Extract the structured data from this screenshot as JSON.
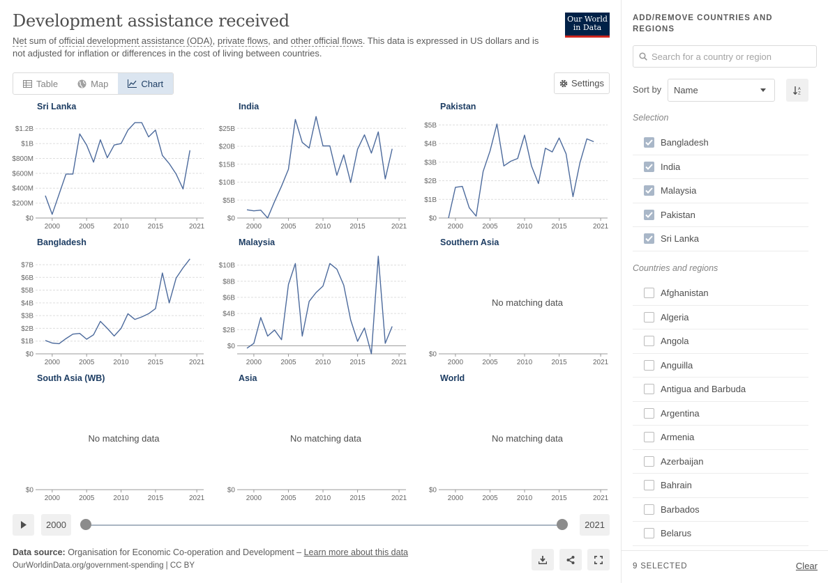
{
  "header": {
    "title": "Development assistance received",
    "subtitle_parts": [
      "Net",
      " sum of ",
      "official development assistance (ODA)",
      ", ",
      "private flows",
      ", and ",
      "other official flows",
      ". This data is expressed in US dollars and is not adjusted for inflation or differences in the cost of living between countries."
    ],
    "logo_line1": "Our World",
    "logo_line2": "in Data"
  },
  "tabs": [
    {
      "label": "Table",
      "icon": "table-icon",
      "active": false
    },
    {
      "label": "Map",
      "icon": "globe-icon",
      "active": false
    },
    {
      "label": "Chart",
      "icon": "line-chart-icon",
      "active": true
    }
  ],
  "settings_label": "Settings",
  "no_data_text": "No matching data",
  "x_ticks": [
    "2000",
    "2005",
    "2010",
    "2015",
    "2021"
  ],
  "chart_data": [
    {
      "type": "line",
      "title": "Sri Lanka",
      "yticks": [
        "$0",
        "$200M",
        "$400M",
        "$600M",
        "$800M",
        "$1B",
        "$1.2B"
      ],
      "ylim": [
        0,
        1.3
      ],
      "unit": "billion USD",
      "x": [
        1999,
        2000,
        2001,
        2002,
        2003,
        2004,
        2005,
        2006,
        2007,
        2008,
        2009,
        2010,
        2011,
        2012,
        2013,
        2014,
        2015,
        2016,
        2017,
        2018,
        2019,
        2020,
        2021,
        2022
      ],
      "values": [
        0.3,
        0.05,
        0.32,
        0.59,
        0.59,
        1.13,
        0.98,
        0.75,
        1.05,
        0.81,
        0.98,
        1.0,
        1.18,
        1.28,
        1.28,
        1.09,
        1.18,
        0.84,
        0.73,
        0.59,
        0.39,
        0.91,
        null,
        null
      ]
    },
    {
      "type": "line",
      "title": "India",
      "yticks": [
        "$0",
        "$5B",
        "$10B",
        "$15B",
        "$20B",
        "$25B"
      ],
      "ylim": [
        0,
        27
      ],
      "unit": "billion USD",
      "x": [
        1999,
        2000,
        2001,
        2002,
        2003,
        2004,
        2005,
        2006,
        2007,
        2008,
        2009,
        2010,
        2011,
        2012,
        2013,
        2014,
        2015,
        2016,
        2017,
        2018,
        2019,
        2020,
        2021,
        2022
      ],
      "values": [
        2.3,
        2.0,
        2.2,
        0.0,
        4.6,
        8.9,
        13.6,
        27.5,
        21.1,
        19.5,
        28.3,
        20.1,
        20.1,
        11.9,
        17.6,
        9.9,
        19.2,
        23.2,
        18.1,
        24.0,
        10.9,
        19.3,
        null,
        null
      ]
    },
    {
      "type": "line",
      "title": "Pakistan",
      "yticks": [
        "$0",
        "$1B",
        "$2B",
        "$3B",
        "$4B",
        "$5B"
      ],
      "ylim": [
        0,
        5.2
      ],
      "unit": "billion USD",
      "x": [
        1999,
        2000,
        2001,
        2002,
        2003,
        2004,
        2005,
        2006,
        2007,
        2008,
        2009,
        2010,
        2011,
        2012,
        2013,
        2014,
        2015,
        2016,
        2017,
        2018,
        2019,
        2020,
        2021,
        2022
      ],
      "values": [
        0.0,
        1.65,
        1.7,
        0.55,
        0.1,
        2.5,
        3.6,
        5.05,
        2.8,
        3.05,
        3.2,
        4.45,
        2.8,
        1.85,
        3.75,
        3.55,
        4.3,
        3.45,
        1.15,
        2.95,
        4.25,
        4.1,
        null,
        null
      ]
    },
    {
      "type": "line",
      "title": "Bangladesh",
      "yticks": [
        "$0",
        "$1B",
        "$2B",
        "$3B",
        "$4B",
        "$5B",
        "$6B",
        "$7B"
      ],
      "ylim": [
        0,
        7.6
      ],
      "unit": "billion USD",
      "x": [
        1999,
        2000,
        2001,
        2002,
        2003,
        2004,
        2005,
        2006,
        2007,
        2008,
        2009,
        2010,
        2011,
        2012,
        2013,
        2014,
        2015,
        2016,
        2017,
        2018,
        2019,
        2020,
        2021
      ],
      "values": [
        1.05,
        0.85,
        0.8,
        1.2,
        1.55,
        1.6,
        1.15,
        1.5,
        2.55,
        2.0,
        1.4,
        2.0,
        3.15,
        2.7,
        2.9,
        3.15,
        3.55,
        6.35,
        4.0,
        5.95,
        6.75,
        7.45,
        null
      ]
    },
    {
      "type": "line",
      "title": "Malaysia",
      "yticks": [
        "$0",
        "$2B",
        "$4B",
        "$6B",
        "$8B",
        "$10B"
      ],
      "ylim": [
        -1,
        11
      ],
      "unit": "billion USD",
      "x": [
        1999,
        2000,
        2001,
        2002,
        2003,
        2004,
        2005,
        2006,
        2007,
        2008,
        2009,
        2010,
        2011,
        2012,
        2013,
        2014,
        2015,
        2016,
        2017,
        2018,
        2019,
        2020,
        2021,
        2022
      ],
      "values": [
        -0.3,
        0.3,
        3.5,
        1.2,
        1.95,
        0.75,
        7.6,
        10.2,
        1.2,
        5.5,
        6.6,
        7.4,
        10.2,
        9.5,
        7.5,
        3.2,
        0.55,
        2.2,
        -1.0,
        11.1,
        0.3,
        2.4,
        null,
        null
      ]
    },
    {
      "type": "line",
      "title": "Southern Asia",
      "yticks": [
        "$0"
      ],
      "values": [],
      "no_data": true
    },
    {
      "type": "line",
      "title": "South Asia (WB)",
      "yticks": [
        "$0"
      ],
      "values": [],
      "no_data": true
    },
    {
      "type": "line",
      "title": "Asia",
      "yticks": [
        "$0"
      ],
      "values": [],
      "no_data": true
    },
    {
      "type": "line",
      "title": "World",
      "yticks": [
        "$0"
      ],
      "values": [],
      "no_data": true
    }
  ],
  "timeline": {
    "start_year": "2000",
    "end_year": "2021",
    "start_fraction": 0,
    "end_fraction": 1
  },
  "footer": {
    "source_label": "Data source:",
    "source_text": " Organisation for Economic Co-operation and Development – ",
    "learn_more": "Learn more about this data",
    "license": "OurWorldinData.org/government-spending | CC BY"
  },
  "sidebar": {
    "heading": "ADD/REMOVE COUNTRIES AND REGIONS",
    "search_placeholder": "Search for a country or region",
    "sort_label": "Sort by",
    "sort_value": "Name",
    "selection_heading": "Selection",
    "selected": [
      "Bangladesh",
      "India",
      "Malaysia",
      "Pakistan",
      "Sri Lanka"
    ],
    "all_heading": "Countries and regions",
    "countries": [
      "Afghanistan",
      "Algeria",
      "Angola",
      "Anguilla",
      "Antigua and Barbuda",
      "Argentina",
      "Armenia",
      "Azerbaijan",
      "Bahrain",
      "Barbados",
      "Belarus"
    ],
    "selected_count": "9 SELECTED",
    "clear_label": "Clear"
  },
  "colors": {
    "line": "#4c6a9c",
    "title": "#1d3d63",
    "logo_bg": "#002147",
    "logo_accent": "#ce261e"
  }
}
